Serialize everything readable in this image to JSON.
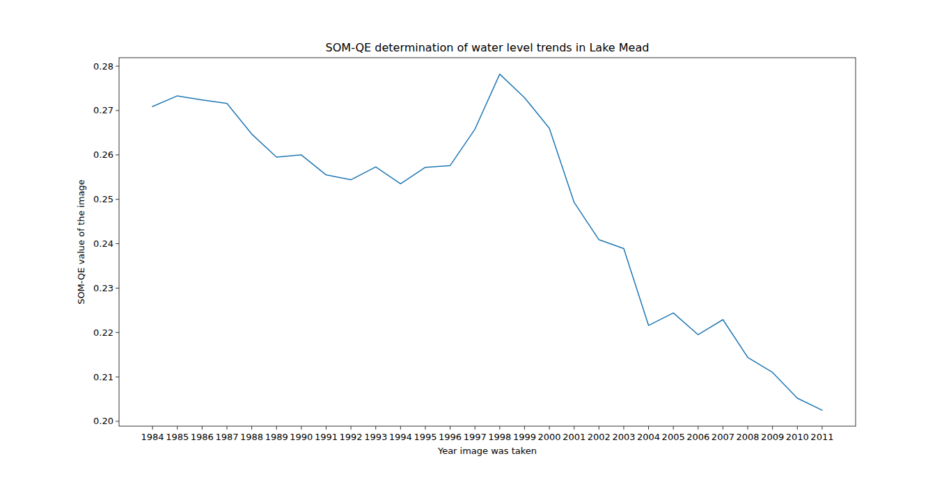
{
  "chart_data": {
    "type": "line",
    "title": "SOM-QE determination of water level trends in Lake Mead",
    "x_label": "Year image was taken",
    "y_label": "SOM-QE value of the image",
    "x": [
      1984,
      1985,
      1986,
      1987,
      1988,
      1989,
      1990,
      1991,
      1992,
      1993,
      1994,
      1995,
      1996,
      1997,
      1998,
      1999,
      2000,
      2001,
      2002,
      2003,
      2004,
      2005,
      2006,
      2007,
      2008,
      2009,
      2010,
      2011
    ],
    "series": [
      {
        "name": "SOM-QE",
        "color": "#1f77b4",
        "values": [
          0.2709,
          0.2733,
          0.2724,
          0.2716,
          0.2647,
          0.2595,
          0.26,
          0.2555,
          0.2544,
          0.2573,
          0.2535,
          0.2572,
          0.2576,
          0.2658,
          0.2782,
          0.2729,
          0.266,
          0.2493,
          0.2409,
          0.2389,
          0.2216,
          0.2244,
          0.2195,
          0.2229,
          0.2144,
          0.211,
          0.2052,
          0.2025
        ]
      }
    ],
    "xlim": [
      1982.65,
      2012.35
    ],
    "xticks": [
      1984,
      1985,
      1986,
      1987,
      1988,
      1989,
      1990,
      1991,
      1992,
      1993,
      1994,
      1995,
      1996,
      1997,
      1998,
      1999,
      2000,
      2001,
      2002,
      2003,
      2004,
      2005,
      2006,
      2007,
      2008,
      2009,
      2010,
      2011
    ],
    "ylim": [
      0.1989,
      0.2819
    ],
    "yticks": [
      {
        "value": 0.2,
        "label": "0.20"
      },
      0.21,
      0.22,
      0.23,
      0.24,
      0.25,
      0.26,
      0.27,
      0.28
    ],
    "grid": false
  }
}
